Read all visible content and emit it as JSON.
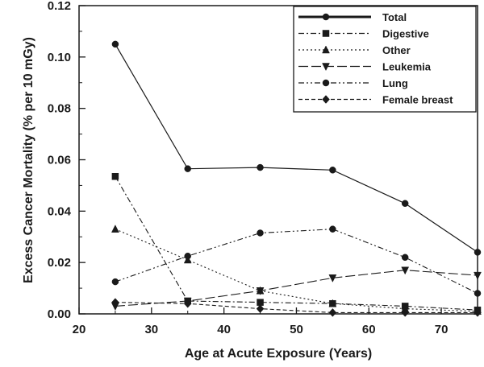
{
  "chart_data": {
    "type": "line",
    "xlabel": "Age at Acute Exposure (Years)",
    "ylabel": "Excess Cancer Mortality (% per 10 mGy)",
    "xlim": [
      20,
      75
    ],
    "ylim": [
      0,
      0.12
    ],
    "xticks": [
      20,
      30,
      40,
      50,
      60,
      70
    ],
    "yticks": [
      0.0,
      0.02,
      0.04,
      0.06,
      0.08,
      0.1,
      0.12
    ],
    "ytick_labels": [
      "0.00",
      "0.02",
      "0.04",
      "0.06",
      "0.08",
      "0.10",
      "0.12"
    ],
    "grid": false,
    "legend_position": "top-right",
    "x": [
      25,
      35,
      45,
      55,
      65,
      75
    ],
    "series": [
      {
        "name": "Total",
        "marker": "circle",
        "dash": "solid",
        "values": [
          0.105,
          0.0565,
          0.057,
          0.056,
          0.043,
          0.024
        ]
      },
      {
        "name": "Digestive",
        "marker": "square",
        "dash": "dash-dot",
        "values": [
          0.0535,
          0.005,
          0.0045,
          0.004,
          0.003,
          0.0015
        ]
      },
      {
        "name": "Other",
        "marker": "triangle-up",
        "dash": "dotted",
        "values": [
          0.033,
          0.021,
          0.009,
          0.004,
          0.002,
          0.001
        ]
      },
      {
        "name": "Leukemia",
        "marker": "triangle-down",
        "dash": "long-dash",
        "values": [
          0.003,
          0.005,
          0.009,
          0.014,
          0.017,
          0.015
        ]
      },
      {
        "name": "Lung",
        "marker": "circle",
        "dash": "dash-dot-dot",
        "values": [
          0.0125,
          0.0225,
          0.0315,
          0.033,
          0.022,
          0.008
        ]
      },
      {
        "name": "Female breast",
        "marker": "diamond",
        "dash": "dashed",
        "values": [
          0.0045,
          0.004,
          0.002,
          0.0005,
          0.0005,
          0.0005
        ]
      }
    ]
  }
}
